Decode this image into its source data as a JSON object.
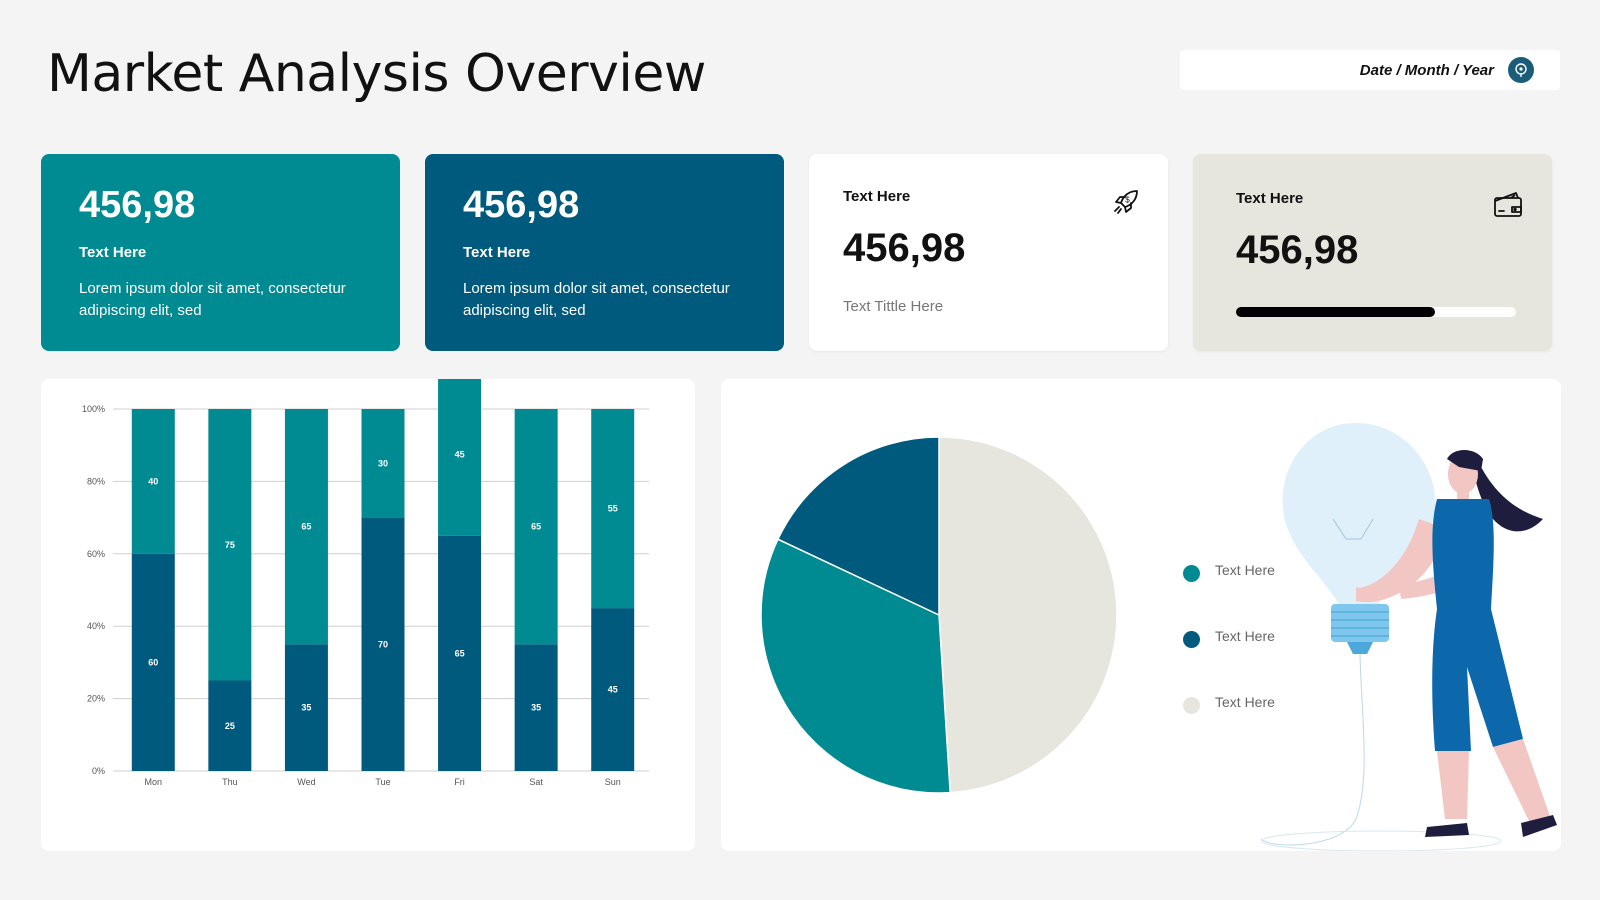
{
  "header": {
    "title": "Market Analysis Overview",
    "date_label": "Date / Month / Year",
    "date_icon": "location-pin-icon"
  },
  "cards": [
    {
      "value": "456,98",
      "label": "Text Here",
      "description": "Lorem ipsum dolor sit amet, consectetur adipiscing elit, sed",
      "color": "#008a91"
    },
    {
      "value": "456,98",
      "label": "Text Here",
      "description": "Lorem ipsum dolor sit amet, consectetur adipiscing elit, sed",
      "color": "#005a7e"
    },
    {
      "value": "456,98",
      "label": "Text Here",
      "subtitle": "Text Tittle Here",
      "icon": "rocket-icon",
      "color": "#ffffff"
    },
    {
      "value": "456,98",
      "label": "Text Here",
      "icon": "wallet-icon",
      "progress": 0.71,
      "color": "#e6e5de"
    }
  ],
  "chart_data": [
    {
      "type": "bar",
      "stacked": true,
      "categories": [
        "Mon",
        "Thu",
        "Wed",
        "Tue",
        "Fri",
        "Sat",
        "Sun"
      ],
      "series": [
        {
          "values": [
            60,
            25,
            35,
            70,
            65,
            35,
            45
          ],
          "color": "#005a7e"
        },
        {
          "values": [
            40,
            75,
            65,
            30,
            45,
            65,
            55
          ],
          "color": "#008a91"
        }
      ],
      "yticks": [
        "0%",
        "20%",
        "40%",
        "60%",
        "80%",
        "100%"
      ],
      "ylim": [
        0,
        100
      ],
      "grid": true
    },
    {
      "type": "pie",
      "slices": [
        {
          "label": "Text Here",
          "value": 33,
          "color": "#008a91"
        },
        {
          "label": "Text Here",
          "value": 18,
          "color": "#005a7e"
        },
        {
          "label": "Text Here",
          "value": 49,
          "color": "#e6e5de"
        }
      ]
    }
  ],
  "colors": {
    "teal": "#008a91",
    "navy": "#005a7e",
    "beige": "#e6e5de",
    "background": "#f4f4f4"
  },
  "illustration": "woman-holding-lightbulb"
}
